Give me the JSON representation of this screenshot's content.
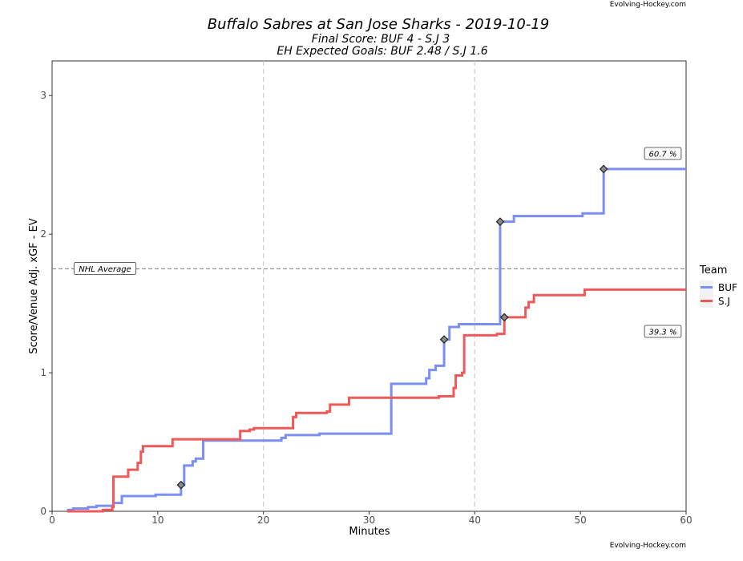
{
  "chart_data": {
    "type": "line",
    "title": "Buffalo Sabres at San Jose Sharks - 2019-10-19",
    "subtitle_lines": [
      "Final Score: BUF 4 - S.J 3",
      "EH Expected Goals: BUF 2.48 / S.J 1.6"
    ],
    "credit_top": "Evolving-Hockey.com",
    "credit_bottom": "Evolving-Hockey.com",
    "xlabel": "Minutes",
    "ylabel": "Score/Venue Adj. xGF - EV",
    "xlim": [
      0,
      60
    ],
    "ylim": [
      0,
      3.25
    ],
    "xticks": [
      0,
      10,
      20,
      30,
      40,
      50,
      60
    ],
    "yticks": [
      0,
      1,
      2,
      3
    ],
    "vlines": [
      20,
      40
    ],
    "hline": {
      "y": 1.75,
      "label": "NHL Average"
    },
    "legend": {
      "title": "Team",
      "position": "right"
    },
    "series": [
      {
        "name": "BUF",
        "color": "#7b8ff0",
        "steps": [
          [
            1.4,
            0.01
          ],
          [
            2,
            0.02
          ],
          [
            3.4,
            0.03
          ],
          [
            4.2,
            0.04
          ],
          [
            5.8,
            0.06
          ],
          [
            6.6,
            0.11
          ],
          [
            9.8,
            0.12
          ],
          [
            12.2,
            0.19
          ],
          [
            12.5,
            0.33
          ],
          [
            13.3,
            0.36
          ],
          [
            13.6,
            0.38
          ],
          [
            14.3,
            0.51
          ],
          [
            21.7,
            0.53
          ],
          [
            22.1,
            0.55
          ],
          [
            25.3,
            0.56
          ],
          [
            32.1,
            0.92
          ],
          [
            35.4,
            0.96
          ],
          [
            35.7,
            1.02
          ],
          [
            36.3,
            1.05
          ],
          [
            37.1,
            1.24
          ],
          [
            37.4,
            1.24
          ],
          [
            37.6,
            1.33
          ],
          [
            38.5,
            1.35
          ],
          [
            42.4,
            2.09
          ],
          [
            43.7,
            2.13
          ],
          [
            50.2,
            2.15
          ],
          [
            52.2,
            2.47
          ]
        ],
        "end_label": "60.7 %",
        "goals": [
          12.2,
          37.1,
          42.4,
          52.2
        ]
      },
      {
        "name": "S.J",
        "color": "#ee5a5a",
        "steps": [
          [
            1.4,
            0
          ],
          [
            4.8,
            0.01
          ],
          [
            5.7,
            0.03
          ],
          [
            5.8,
            0.25
          ],
          [
            7.2,
            0.3
          ],
          [
            8.1,
            0.35
          ],
          [
            8.4,
            0.43
          ],
          [
            8.6,
            0.47
          ],
          [
            11.4,
            0.52
          ],
          [
            17.8,
            0.58
          ],
          [
            18.7,
            0.59
          ],
          [
            19.1,
            0.6
          ],
          [
            22.8,
            0.68
          ],
          [
            23.1,
            0.71
          ],
          [
            26,
            0.72
          ],
          [
            26.3,
            0.77
          ],
          [
            28.1,
            0.82
          ],
          [
            36.6,
            0.83
          ],
          [
            38,
            0.89
          ],
          [
            38.2,
            0.98
          ],
          [
            38.8,
            1
          ],
          [
            39,
            1.27
          ],
          [
            42.1,
            1.28
          ],
          [
            42.8,
            1.4
          ],
          [
            44.8,
            1.47
          ],
          [
            45.1,
            1.51
          ],
          [
            45.6,
            1.56
          ],
          [
            50.4,
            1.6
          ]
        ],
        "end_label": "39.3 %",
        "goals": [
          42.8
        ]
      }
    ]
  }
}
